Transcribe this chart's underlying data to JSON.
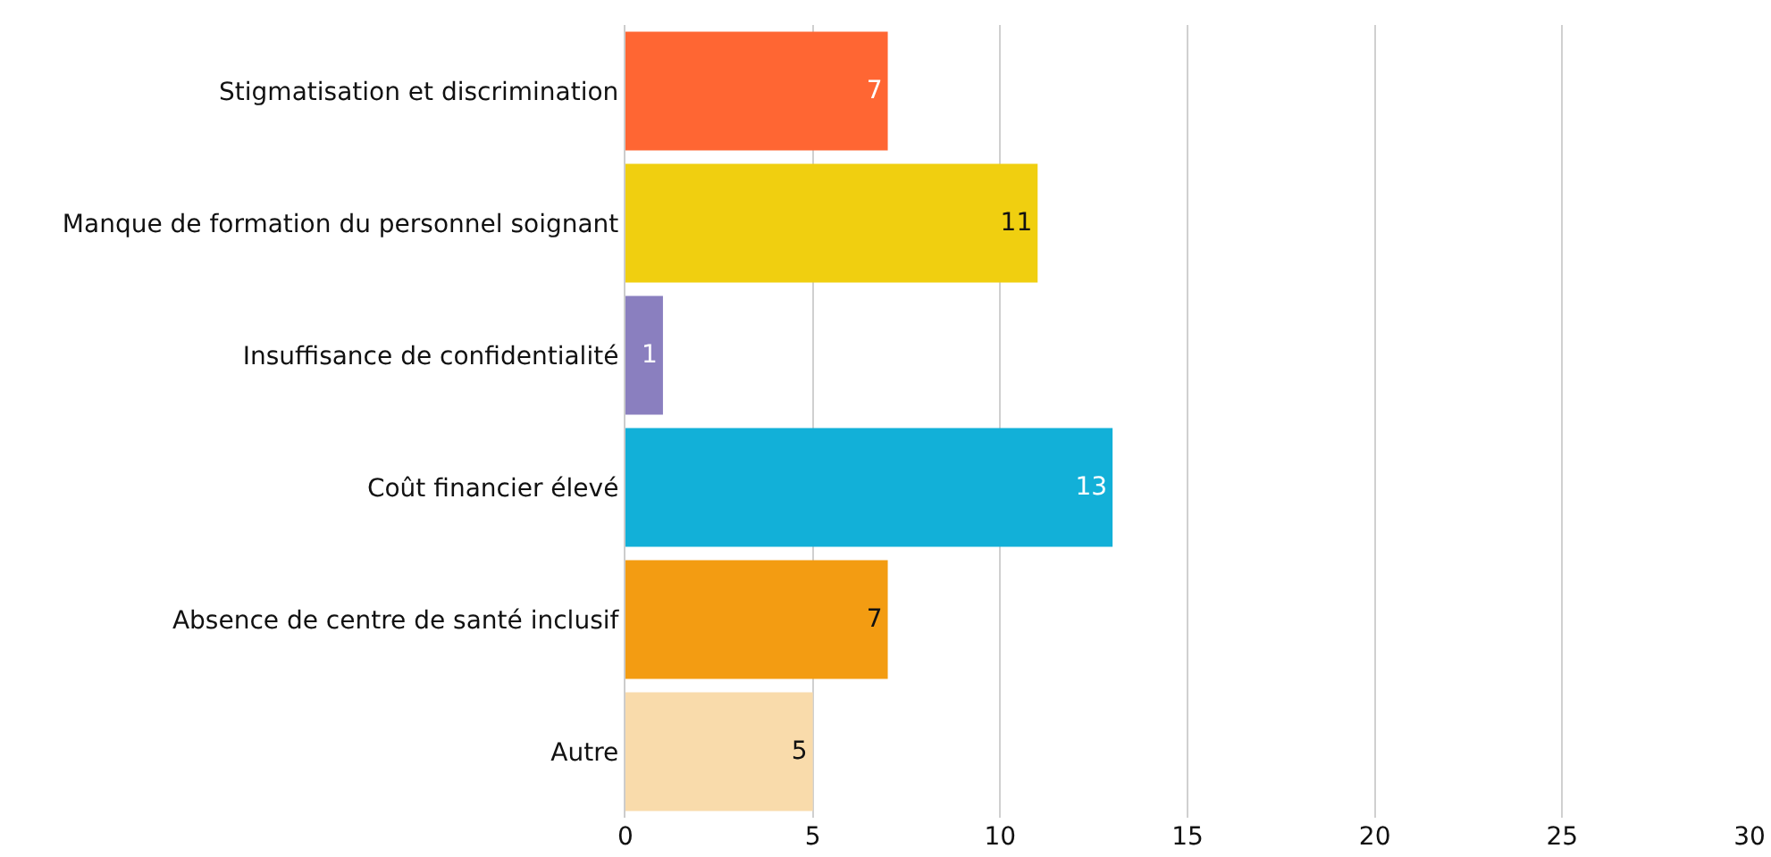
{
  "chart_data": {
    "type": "bar",
    "orientation": "horizontal",
    "categories": [
      "Stigmatisation et discrimination",
      "Manque de formation du personnel soignant",
      "Insuffisance de confidentialité",
      "Coût financier élevé",
      "Absence de centre de santé inclusif",
      "Autre"
    ],
    "values": [
      7,
      11,
      1,
      13,
      7,
      5
    ],
    "colors": [
      "#ff6633",
      "#f0cf10",
      "#8a7fbf",
      "#12b0d8",
      "#f39c12",
      "#f9dbab"
    ],
    "xlim": [
      0,
      30
    ],
    "xticks": [
      0,
      5,
      10,
      15,
      20,
      25,
      30
    ],
    "grid": "x",
    "data_labels": true
  }
}
